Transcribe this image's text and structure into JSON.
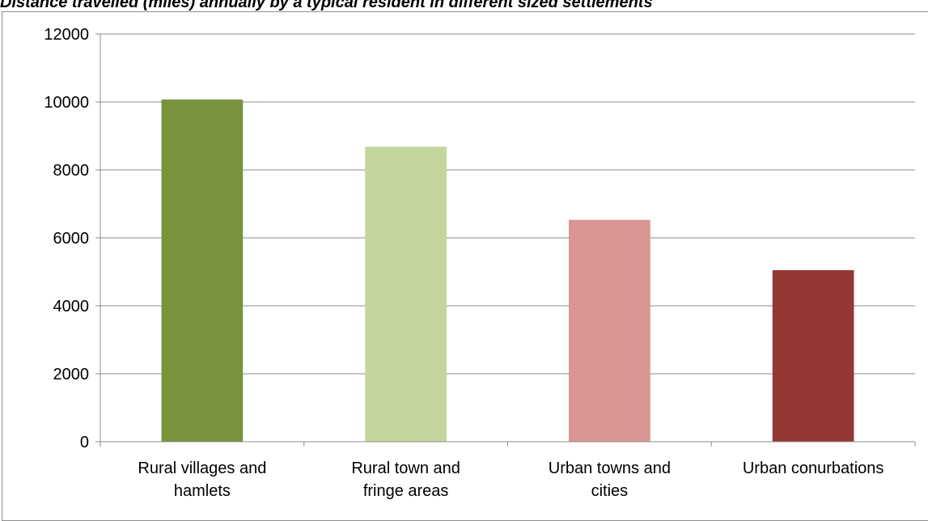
{
  "chart_data": {
    "type": "bar",
    "title": "Distance travelled (miles) annually by a typical resident in different sized settlements",
    "xlabel": "",
    "ylabel": "",
    "ylim": [
      0,
      12000
    ],
    "y_ticks": [
      "0",
      "2000",
      "4000",
      "6000",
      "8000",
      "10000",
      "12000"
    ],
    "grid": true,
    "categories": [
      [
        "Rural villages and",
        "hamlets"
      ],
      [
        "Rural town and",
        "fringe areas"
      ],
      [
        "Urban towns and",
        "cities"
      ],
      [
        "Urban conurbations"
      ]
    ],
    "values": [
      10070,
      8680,
      6530,
      5050
    ],
    "colors": [
      "#77933c",
      "#c3d69b",
      "#d99694",
      "#953735"
    ]
  }
}
